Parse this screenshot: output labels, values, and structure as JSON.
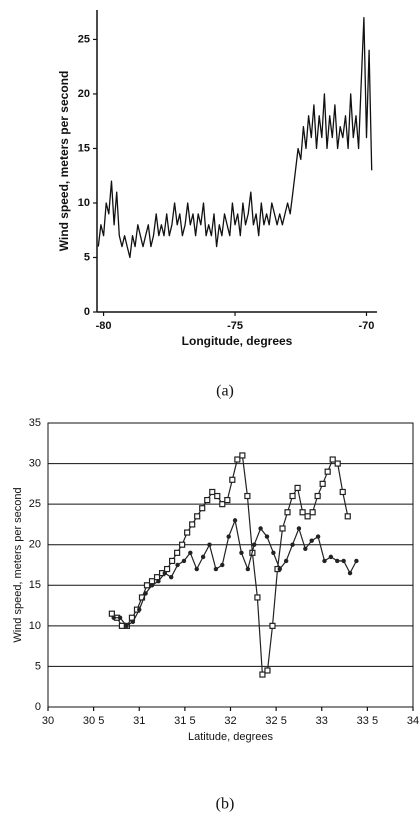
{
  "chart_data": [
    {
      "type": "line",
      "caption": "(a)",
      "x_label": "Longitude, degrees",
      "y_label": "Wind speed, meters per second",
      "xlim": [
        -80.25,
        -69.6
      ],
      "ylim": [
        0,
        27.7
      ],
      "xticks": [
        -80,
        -75,
        -70
      ],
      "yticks": [
        0,
        5,
        10,
        15,
        20,
        25
      ],
      "grid": false,
      "frame": false,
      "x": [
        -80.2,
        -80.1,
        -80.0,
        -79.9,
        -79.8,
        -79.7,
        -79.6,
        -79.5,
        -79.4,
        -79.3,
        -79.2,
        -79.1,
        -79.0,
        -78.9,
        -78.8,
        -78.7,
        -78.6,
        -78.5,
        -78.4,
        -78.3,
        -78.2,
        -78.1,
        -78.0,
        -77.9,
        -77.8,
        -77.7,
        -77.6,
        -77.5,
        -77.4,
        -77.3,
        -77.2,
        -77.1,
        -77.0,
        -76.9,
        -76.8,
        -76.7,
        -76.6,
        -76.5,
        -76.4,
        -76.3,
        -76.2,
        -76.1,
        -76.0,
        -75.9,
        -75.8,
        -75.7,
        -75.6,
        -75.5,
        -75.4,
        -75.3,
        -75.2,
        -75.1,
        -75.0,
        -74.9,
        -74.8,
        -74.7,
        -74.6,
        -74.5,
        -74.4,
        -74.3,
        -74.2,
        -74.1,
        -74.0,
        -73.9,
        -73.8,
        -73.7,
        -73.6,
        -73.5,
        -73.4,
        -73.3,
        -73.2,
        -73.1,
        -73.0,
        -72.9,
        -72.8,
        -72.7,
        -72.6,
        -72.5,
        -72.4,
        -72.3,
        -72.2,
        -72.1,
        -72.0,
        -71.9,
        -71.8,
        -71.7,
        -71.6,
        -71.5,
        -71.4,
        -71.3,
        -71.2,
        -71.1,
        -71.0,
        -70.9,
        -70.8,
        -70.7,
        -70.6,
        -70.5,
        -70.4,
        -70.3,
        -70.2,
        -70.1,
        -70.0,
        -69.9,
        -69.8
      ],
      "series": [
        {
          "color": "#111111",
          "marker": "none",
          "values": [
            6,
            8,
            7,
            10,
            9,
            12,
            8,
            11,
            7,
            6,
            7,
            6,
            5,
            7,
            6,
            8,
            7,
            6,
            7,
            8,
            6,
            7,
            9,
            7,
            8,
            7,
            9,
            7,
            8,
            10,
            8,
            9,
            7,
            8,
            10,
            8,
            9,
            7,
            9,
            8,
            10,
            7,
            8,
            7,
            9,
            6,
            8,
            7,
            9,
            8,
            7,
            10,
            8,
            9,
            7,
            10,
            8,
            9,
            11,
            8,
            9,
            7,
            10,
            8,
            9,
            8,
            10,
            9,
            8,
            9,
            8,
            9,
            10,
            9,
            11,
            13,
            15,
            14,
            17,
            15,
            18,
            16,
            19,
            15,
            18,
            16,
            20,
            15,
            18,
            16,
            19,
            15,
            17,
            16,
            18,
            15,
            20,
            16,
            18,
            15,
            21,
            27,
            16,
            24,
            13
          ]
        }
      ]
    },
    {
      "type": "line",
      "caption": "(b)",
      "x_label": "Latitude, degrees",
      "y_label": "Wind speed, meters per second",
      "xlim": [
        30,
        34
      ],
      "ylim": [
        0,
        35
      ],
      "xticks": [
        30,
        {
          "value": 30.5,
          "label": "30 5"
        },
        31,
        {
          "value": 31.5,
          "label": "31 5"
        },
        32,
        {
          "value": 32.5,
          "label": "32 5"
        },
        33,
        {
          "value": 33.5,
          "label": "33 5"
        },
        34
      ],
      "yticks": [
        0,
        5,
        10,
        15,
        20,
        25,
        30,
        35
      ],
      "grid": true,
      "frame": true,
      "series": [
        {
          "color": "#222222",
          "marker": "square",
          "x": [
            30.7,
            30.755,
            30.81,
            30.865,
            30.92,
            30.975,
            31.03,
            31.085,
            31.14,
            31.195,
            31.25,
            31.305,
            31.36,
            31.415,
            31.47,
            31.525,
            31.58,
            31.635,
            31.69,
            31.745,
            31.8,
            31.855,
            31.91,
            31.965,
            32.02,
            32.075,
            32.13,
            32.185,
            32.24,
            32.295,
            32.35,
            32.405,
            32.46,
            32.515,
            32.57,
            32.625,
            32.68,
            32.735,
            32.79,
            32.845,
            32.9,
            32.955,
            33.01,
            33.065,
            33.12,
            33.175,
            33.23,
            33.285
          ],
          "values": [
            11.5,
            11,
            10,
            10,
            11,
            12,
            13.5,
            15,
            15.5,
            16,
            16.5,
            17,
            18,
            19,
            20,
            21.5,
            22.5,
            23.5,
            24.5,
            25.5,
            26.5,
            26,
            25,
            25.5,
            28,
            30.5,
            31,
            26,
            19,
            13.5,
            4,
            4.5,
            10,
            17,
            22,
            24,
            26,
            27,
            24,
            23.5,
            24,
            26,
            27.5,
            29,
            30.5,
            30,
            26.5,
            23.5
          ]
        },
        {
          "color": "#222222",
          "marker": "circle",
          "x": [
            30.72,
            30.79,
            30.86,
            30.93,
            31.0,
            31.07,
            31.14,
            31.21,
            31.28,
            31.35,
            31.42,
            31.49,
            31.56,
            31.63,
            31.7,
            31.77,
            31.84,
            31.91,
            31.98,
            32.05,
            32.12,
            32.19,
            32.26,
            32.33,
            32.4,
            32.47,
            32.54,
            32.61,
            32.68,
            32.75,
            32.82,
            32.89,
            32.96,
            33.03,
            33.1,
            33.17,
            33.24,
            33.31,
            33.38
          ],
          "values": [
            11,
            11,
            10,
            10.5,
            12,
            14,
            15,
            15.5,
            16.5,
            16,
            17.5,
            18,
            19,
            17,
            18.5,
            20,
            17,
            17.5,
            21,
            23,
            19,
            17,
            20,
            22,
            21,
            19,
            17,
            18,
            20,
            22,
            19.5,
            20.5,
            21,
            18,
            18.5,
            18,
            18,
            16.5,
            18
          ]
        }
      ]
    }
  ]
}
